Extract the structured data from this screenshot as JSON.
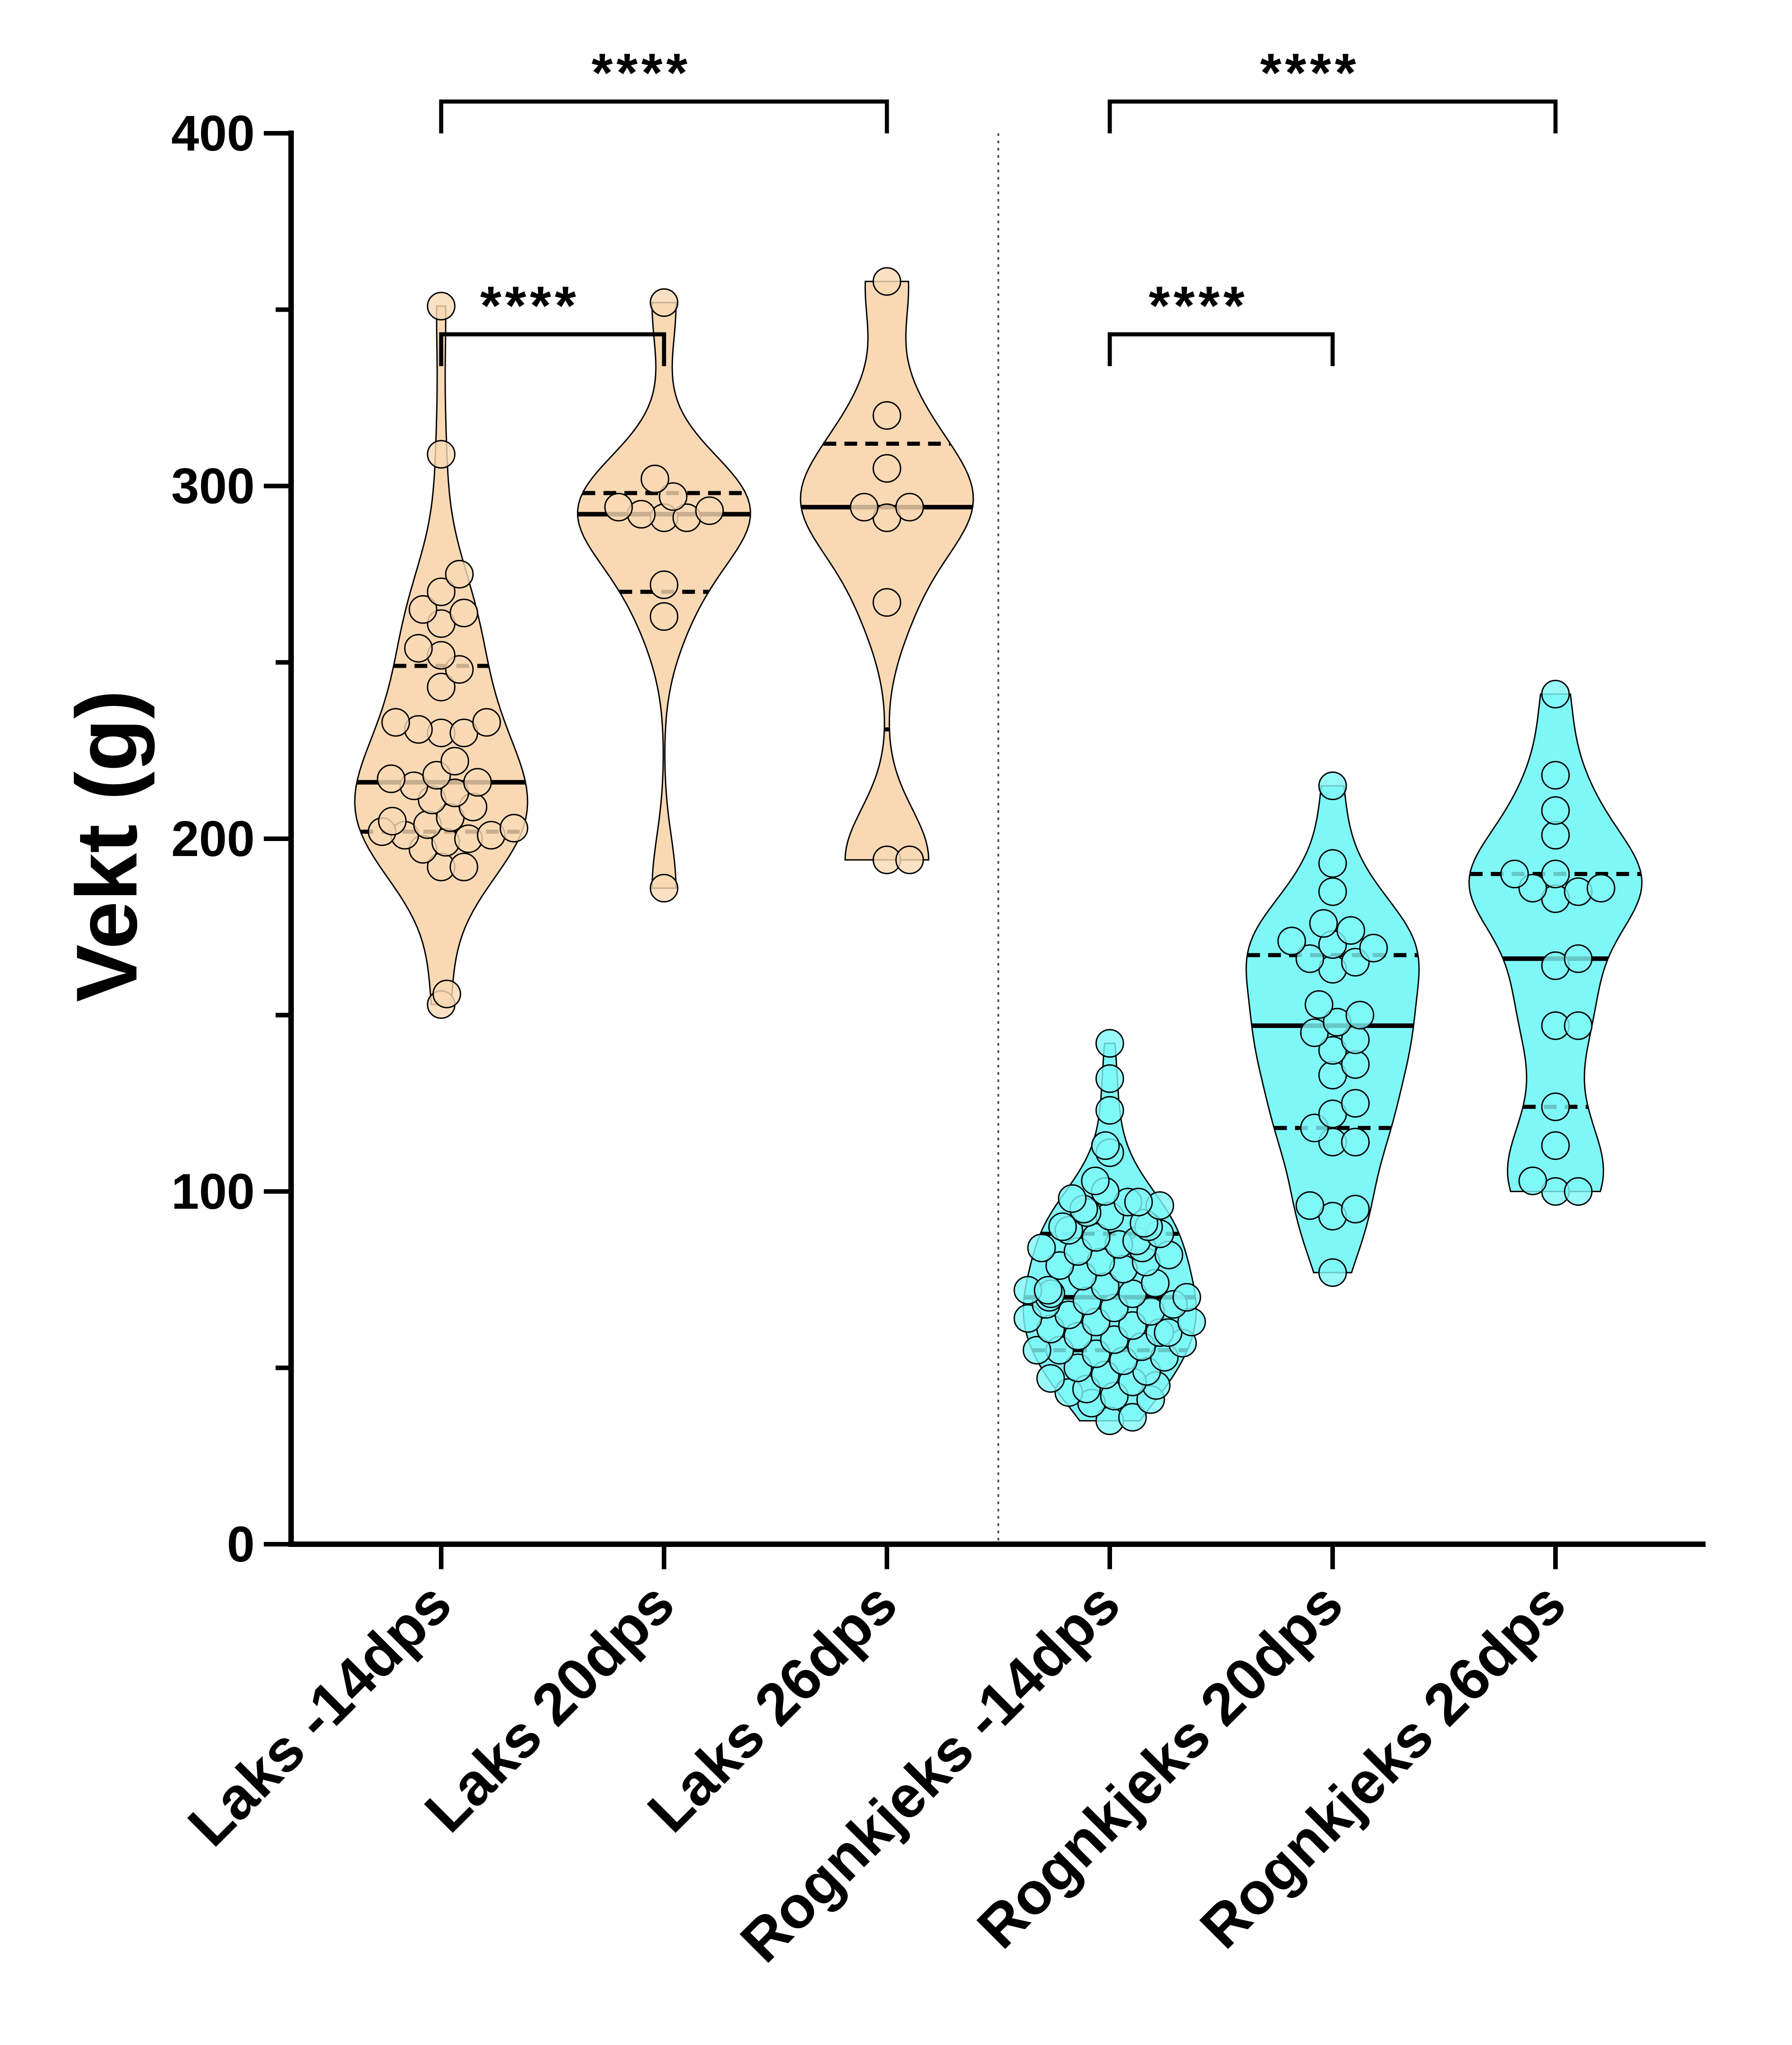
{
  "chart_data": {
    "type": "violin",
    "ylabel": "Vekt (g)",
    "xlabel": "",
    "ylim": [
      0,
      400
    ],
    "yticks": [
      0,
      100,
      200,
      300,
      400
    ],
    "separator_between": [
      "Laks 26dps",
      "Rognkjeks -14dps"
    ],
    "colors": {
      "laks": "#f9d9b4",
      "rognkjeks": "#7ff7f7"
    },
    "groups": [
      {
        "name": "Laks -14dps",
        "color_key": "laks",
        "median": 216,
        "q1": 202,
        "q3": 249,
        "min": 153,
        "max": 351,
        "points": [
          351,
          309,
          275,
          270,
          265,
          264,
          261,
          254,
          252,
          248,
          243,
          233,
          233,
          231,
          230,
          230,
          222,
          218,
          217,
          216,
          215,
          213,
          211,
          209,
          206,
          205,
          204,
          203,
          202,
          201,
          201,
          200,
          199,
          197,
          192,
          192,
          156,
          153
        ]
      },
      {
        "name": "Laks 20dps",
        "color_key": "laks",
        "median": 292,
        "q1": 270,
        "q3": 298,
        "min": 186,
        "max": 352,
        "points": [
          352,
          302,
          297,
          294,
          293,
          292,
          291,
          291,
          272,
          263,
          186
        ]
      },
      {
        "name": "Laks 26dps",
        "color_key": "laks",
        "median": 294,
        "q1": 231,
        "q3": 312,
        "min": 194,
        "max": 358,
        "points": [
          358,
          320,
          305,
          294,
          294,
          291,
          267,
          194,
          194
        ]
      },
      {
        "name": "Rognkjeks -14dps",
        "color_key": "rognkjeks",
        "median": 70,
        "q1": 55,
        "q3": 88,
        "min": 35,
        "max": 142,
        "points": [
          142,
          132,
          123,
          113,
          111,
          103,
          100,
          98,
          97,
          97,
          96,
          95,
          94,
          93,
          91,
          90,
          90,
          89,
          88,
          87,
          86,
          85,
          84,
          84,
          83,
          82,
          80,
          80,
          79,
          78,
          76,
          74,
          73,
          72,
          72,
          71,
          71,
          70,
          70,
          69,
          68,
          68,
          67,
          66,
          65,
          64,
          63,
          63,
          62,
          61,
          60,
          60,
          59,
          58,
          57,
          56,
          55,
          55,
          54,
          53,
          52,
          50,
          49,
          48,
          47,
          46,
          45,
          44,
          43,
          42,
          41,
          40,
          36,
          35
        ]
      },
      {
        "name": "Rognkjeks 20dps",
        "color_key": "rognkjeks",
        "median": 147,
        "q1": 118,
        "q3": 167,
        "min": 77,
        "max": 215,
        "points": [
          215,
          193,
          185,
          176,
          174,
          171,
          170,
          169,
          166,
          165,
          163,
          153,
          150,
          148,
          145,
          143,
          140,
          136,
          133,
          125,
          122,
          118,
          114,
          114,
          96,
          95,
          93,
          77
        ]
      },
      {
        "name": "Rognkjeks 26dps",
        "color_key": "rognkjeks",
        "median": 166,
        "q1": 124,
        "q3": 190,
        "min": 100,
        "max": 241,
        "points": [
          241,
          218,
          208,
          201,
          190,
          190,
          186,
          186,
          185,
          183,
          166,
          164,
          147,
          147,
          124,
          113,
          103,
          100,
          100
        ]
      }
    ],
    "significance": [
      {
        "from": "Laks -14dps",
        "to": "Laks 20dps",
        "label": "****"
      },
      {
        "from": "Laks -14dps",
        "to": "Laks 26dps",
        "label": "****"
      },
      {
        "from": "Rognkjeks -14dps",
        "to": "Rognkjeks 20dps",
        "label": "****"
      },
      {
        "from": "Rognkjeks -14dps",
        "to": "Rognkjeks 26dps",
        "label": "****"
      }
    ]
  }
}
